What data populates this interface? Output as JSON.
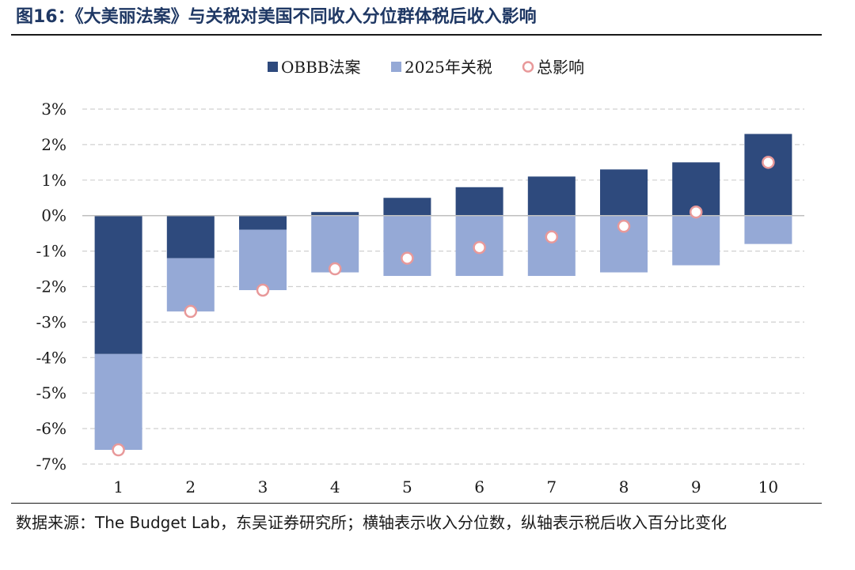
{
  "title": "图16：《大美丽法案》与关税对美国不同收入分位群体税后收入影响",
  "source_note": "数据来源：The Budget Lab，东吴证券研究所；横轴表示收入分位数，纵轴表示税后收入百分比变化",
  "colors": {
    "obbb": "#2e4a7d",
    "tariff": "#95a9d6",
    "total_fill": "#ffffff",
    "total_stroke": "#e8999a",
    "grid": "#d0d0d0",
    "title": "#1f3864"
  },
  "chart_data": {
    "type": "bar",
    "stacked": true,
    "categories": [
      "1",
      "2",
      "3",
      "4",
      "5",
      "6",
      "7",
      "8",
      "9",
      "10"
    ],
    "series": [
      {
        "name": "OBBB法案",
        "kind": "bar",
        "values": [
          -3.9,
          -1.2,
          -0.4,
          0.1,
          0.5,
          0.8,
          1.1,
          1.3,
          1.5,
          2.3
        ]
      },
      {
        "name": "2025年关税",
        "kind": "bar",
        "values": [
          -2.7,
          -1.5,
          -1.7,
          -1.6,
          -1.7,
          -1.7,
          -1.7,
          -1.6,
          -1.4,
          -0.8
        ]
      },
      {
        "name": "总影响",
        "kind": "marker",
        "values": [
          -6.6,
          -2.7,
          -2.1,
          -1.5,
          -1.2,
          -0.9,
          -0.6,
          -0.3,
          0.1,
          1.5
        ]
      }
    ],
    "ylim": [
      -7,
      3
    ],
    "yticks": [
      3,
      2,
      1,
      0,
      -1,
      -2,
      -3,
      -4,
      -5,
      -6,
      -7
    ],
    "ytick_labels": [
      "3%",
      "2%",
      "1%",
      "0%",
      "-1%",
      "-2%",
      "-3%",
      "-4%",
      "-5%",
      "-6%",
      "-7%"
    ],
    "grid": true,
    "legend_position": "top-center",
    "xlabel": "",
    "ylabel": ""
  }
}
